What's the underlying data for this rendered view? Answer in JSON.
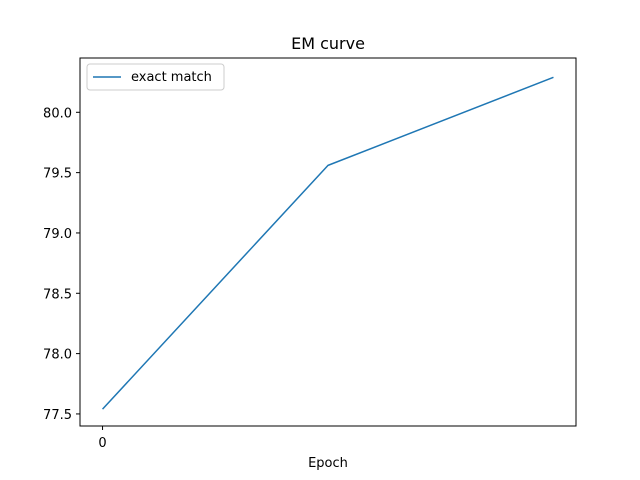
{
  "chart_data": {
    "type": "line",
    "title": "EM curve",
    "xlabel": "Epoch",
    "ylabel": "",
    "x": [
      0,
      1,
      2
    ],
    "x_ticks": [
      "0"
    ],
    "ylim": [
      77.4,
      80.45
    ],
    "y_ticks": [
      "77.5",
      "78.0",
      "78.5",
      "79.0",
      "79.5",
      "80.0"
    ],
    "y_tick_values": [
      77.5,
      78.0,
      78.5,
      79.0,
      79.5,
      80.0
    ],
    "series": [
      {
        "name": "exact match",
        "color": "#1f77b4",
        "values": [
          77.54,
          79.56,
          80.29
        ]
      }
    ],
    "grid": false,
    "legend_position": "top-left"
  }
}
